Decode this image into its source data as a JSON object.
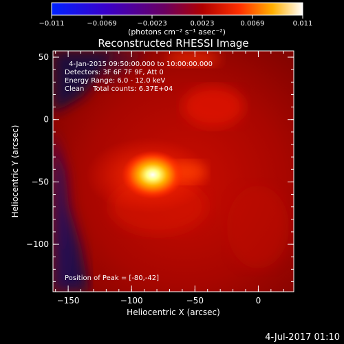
{
  "colorbar": {
    "ticks": [
      "-0.011",
      "-0.0069",
      "-0.0023",
      "0.0023",
      "0.0069",
      "0.011"
    ],
    "unit_label": "(photons cm⁻² s⁻¹ asec⁻²)"
  },
  "chart_data": {
    "type": "heatmap",
    "title": "Reconstructed RHESSI Image",
    "xlabel": "Heliocentric X (arcsec)",
    "ylabel": "Heliocentric Y (arcsec)",
    "xlim": [
      -162,
      28
    ],
    "ylim": [
      -138,
      55
    ],
    "xticks": [
      -150,
      -100,
      -50,
      0
    ],
    "yticks": [
      50,
      0,
      -50,
      -100
    ],
    "colorscale": "hot (blue-purple-red-yellow-white)",
    "value_range": [
      -0.011,
      0.011
    ],
    "peak": {
      "x": -80,
      "y": -42
    },
    "annotations": [
      "4-Jan-2015 09:50:00.000 to 10:00:00.000",
      "Detectors: 3F 6F 7F 9F, Att 0",
      "Energy Range: 6.0 - 12.0 keV",
      "Clean    Total counts: 6.37E+04"
    ],
    "peak_label": "Position of Peak = [-80,-42]"
  },
  "footer": {
    "timestamp": "4-Jul-2017 01:10"
  }
}
